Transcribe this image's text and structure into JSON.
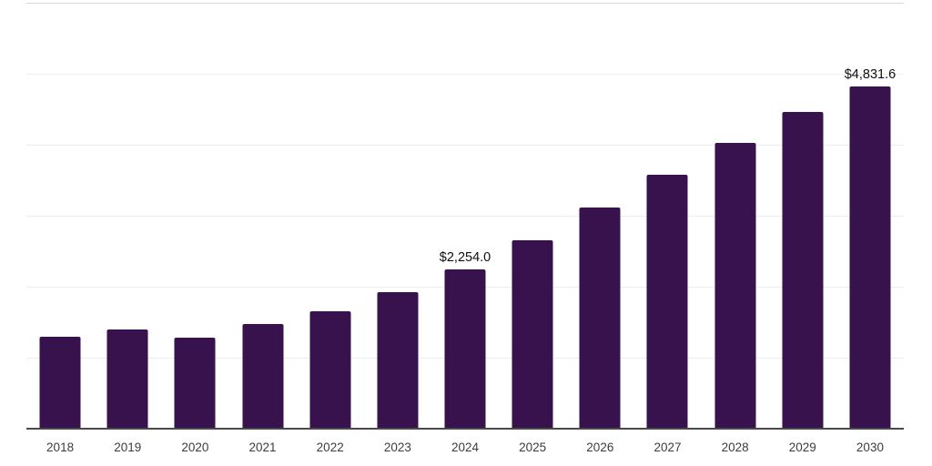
{
  "chart_data": {
    "type": "bar",
    "title": "",
    "xlabel": "",
    "ylabel": "",
    "categories": [
      "2018",
      "2019",
      "2020",
      "2021",
      "2022",
      "2023",
      "2024",
      "2025",
      "2026",
      "2027",
      "2028",
      "2029",
      "2030"
    ],
    "values": [
      1308,
      1410,
      1295,
      1487,
      1667,
      1936,
      2254.0,
      2671,
      3132,
      3590,
      4038,
      4474,
      4831.6
    ],
    "data_labels": [
      {
        "index": 6,
        "text": "$2,254.0"
      },
      {
        "index": 12,
        "text": "$4,831.6"
      }
    ],
    "ylim": [
      0,
      6000
    ],
    "gridline_step": 1000,
    "grid": "horizontal",
    "legend": "none",
    "y_axis_tick_labels": "none",
    "colors": {
      "bar": "#38124d",
      "axis_line": "#4a4a4a",
      "gridline": "#ededed",
      "plot_top_border": "#d9d9d9",
      "tick_label": "#3c3c3c",
      "data_label": "#0f0f0f",
      "background": "#ffffff"
    }
  }
}
